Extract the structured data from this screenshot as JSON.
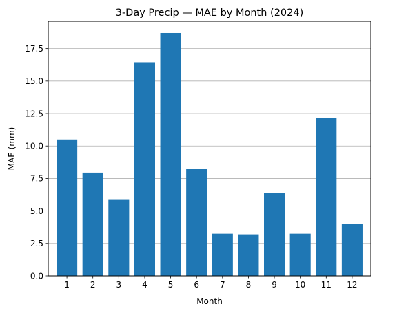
{
  "chart_data": {
    "type": "bar",
    "title": "3-Day Precip — MAE by Month (2024)",
    "xlabel": "Month",
    "ylabel": "MAE (mm)",
    "categories": [
      "1",
      "2",
      "3",
      "4",
      "5",
      "6",
      "7",
      "8",
      "9",
      "10",
      "11",
      "12"
    ],
    "values": [
      10.5,
      7.95,
      5.85,
      16.45,
      18.7,
      8.25,
      3.25,
      3.2,
      6.4,
      3.25,
      12.15,
      4.0
    ],
    "ylim": [
      0,
      19.6
    ],
    "yticks": [
      0.0,
      2.5,
      5.0,
      7.5,
      10.0,
      12.5,
      15.0,
      17.5
    ],
    "ytick_labels": [
      "0.0",
      "2.5",
      "5.0",
      "7.5",
      "10.0",
      "12.5",
      "15.0",
      "17.5"
    ],
    "grid": "y-major",
    "legend": "none",
    "bar_color": "#1f77b4",
    "grid_color": "#b0b0b0"
  }
}
